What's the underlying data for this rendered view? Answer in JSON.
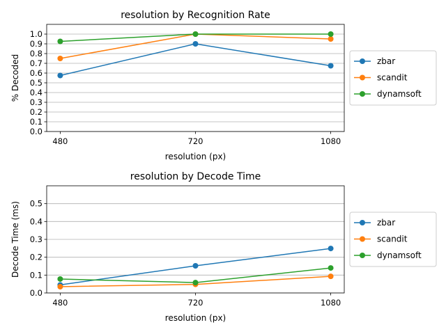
{
  "chart_data": [
    {
      "type": "line",
      "title": "resolution by Recognition Rate",
      "xlabel": "resolution (px)",
      "ylabel": "% Decoded",
      "categories": [
        "480",
        "720",
        "1080"
      ],
      "ylim": [
        0,
        1.1
      ],
      "yticks": [
        "0.0",
        "0.1",
        "0.2",
        "0.3",
        "0.4",
        "0.5",
        "0.6",
        "0.7",
        "0.8",
        "0.9",
        "1.0"
      ],
      "grid": "horizontal",
      "legend_position": "right-outside",
      "series": [
        {
          "name": "zbar",
          "color": "#1f77b4",
          "values": [
            0.575,
            0.9,
            0.675
          ]
        },
        {
          "name": "scandit",
          "color": "#ff7f0e",
          "values": [
            0.75,
            1.0,
            0.95
          ]
        },
        {
          "name": "dynamsoft",
          "color": "#2ca02c",
          "values": [
            0.925,
            1.0,
            1.0
          ]
        }
      ]
    },
    {
      "type": "line",
      "title": "resolution by Decode Time",
      "xlabel": "resolution (px)",
      "ylabel": "Decode Time (ms)",
      "categories": [
        "480",
        "720",
        "1080"
      ],
      "ylim": [
        0,
        0.6
      ],
      "yticks": [
        "0.0",
        "0.1",
        "0.2",
        "0.3",
        "0.4",
        "0.5"
      ],
      "grid": "horizontal",
      "legend_position": "right-outside",
      "series": [
        {
          "name": "zbar",
          "color": "#1f77b4",
          "values": [
            0.045,
            0.152,
            0.249
          ]
        },
        {
          "name": "scandit",
          "color": "#ff7f0e",
          "values": [
            0.035,
            0.048,
            0.093
          ]
        },
        {
          "name": "dynamsoft",
          "color": "#2ca02c",
          "values": [
            0.078,
            0.058,
            0.14
          ]
        }
      ]
    }
  ]
}
